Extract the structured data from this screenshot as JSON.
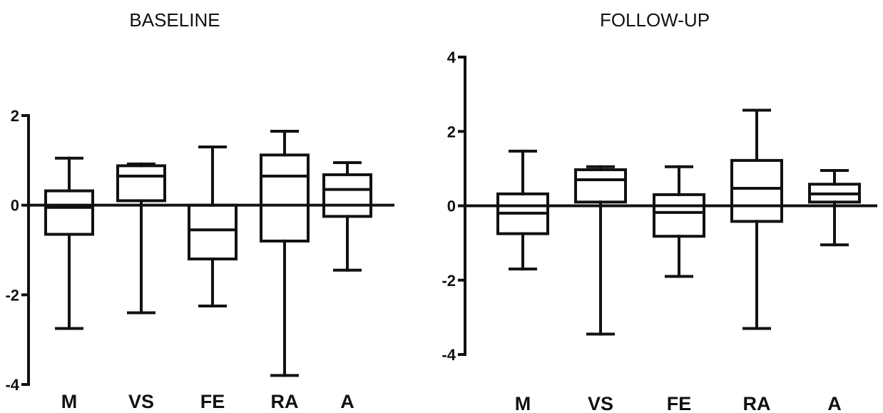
{
  "chart_data": [
    {
      "type": "box",
      "title": "BASELINE",
      "xlabel": "",
      "ylabel": "",
      "ylim": [
        -4,
        2
      ],
      "yticks": [
        2,
        0,
        -2,
        -4
      ],
      "grid": false,
      "reference_line": 0,
      "categories": [
        "M",
        "VS",
        "FE",
        "RA",
        "A"
      ],
      "boxes": [
        {
          "category": "M",
          "min": -2.75,
          "q1": -0.65,
          "median": -0.05,
          "q3": 0.32,
          "max": 1.05
        },
        {
          "category": "VS",
          "min": -2.4,
          "q1": 0.1,
          "median": 0.65,
          "q3": 0.88,
          "max": 0.92
        },
        {
          "category": "FE",
          "min": -2.25,
          "q1": -1.2,
          "median": -0.55,
          "q3": 0.0,
          "max": 1.3
        },
        {
          "category": "RA",
          "min": -3.8,
          "q1": -0.8,
          "median": 0.65,
          "q3": 1.12,
          "max": 1.65
        },
        {
          "category": "A",
          "min": -1.45,
          "q1": -0.25,
          "median": 0.35,
          "q3": 0.68,
          "max": 0.95
        }
      ]
    },
    {
      "type": "box",
      "title": "FOLLOW-UP",
      "xlabel": "",
      "ylabel": "",
      "ylim": [
        -4,
        4
      ],
      "yticks": [
        4,
        2,
        0,
        -2,
        -4
      ],
      "grid": false,
      "reference_line": 0,
      "categories": [
        "M",
        "VS",
        "FE",
        "RA",
        "A"
      ],
      "boxes": [
        {
          "category": "M",
          "min": -1.7,
          "q1": -0.75,
          "median": -0.2,
          "q3": 0.32,
          "max": 1.47
        },
        {
          "category": "VS",
          "min": -3.45,
          "q1": 0.1,
          "median": 0.7,
          "q3": 0.97,
          "max": 1.05
        },
        {
          "category": "FE",
          "min": -1.9,
          "q1": -0.82,
          "median": -0.18,
          "q3": 0.3,
          "max": 1.05
        },
        {
          "category": "RA",
          "min": -3.3,
          "q1": -0.42,
          "median": 0.47,
          "q3": 1.22,
          "max": 2.57
        },
        {
          "category": "A",
          "min": -1.05,
          "q1": 0.1,
          "median": 0.32,
          "q3": 0.58,
          "max": 0.95
        }
      ]
    }
  ]
}
